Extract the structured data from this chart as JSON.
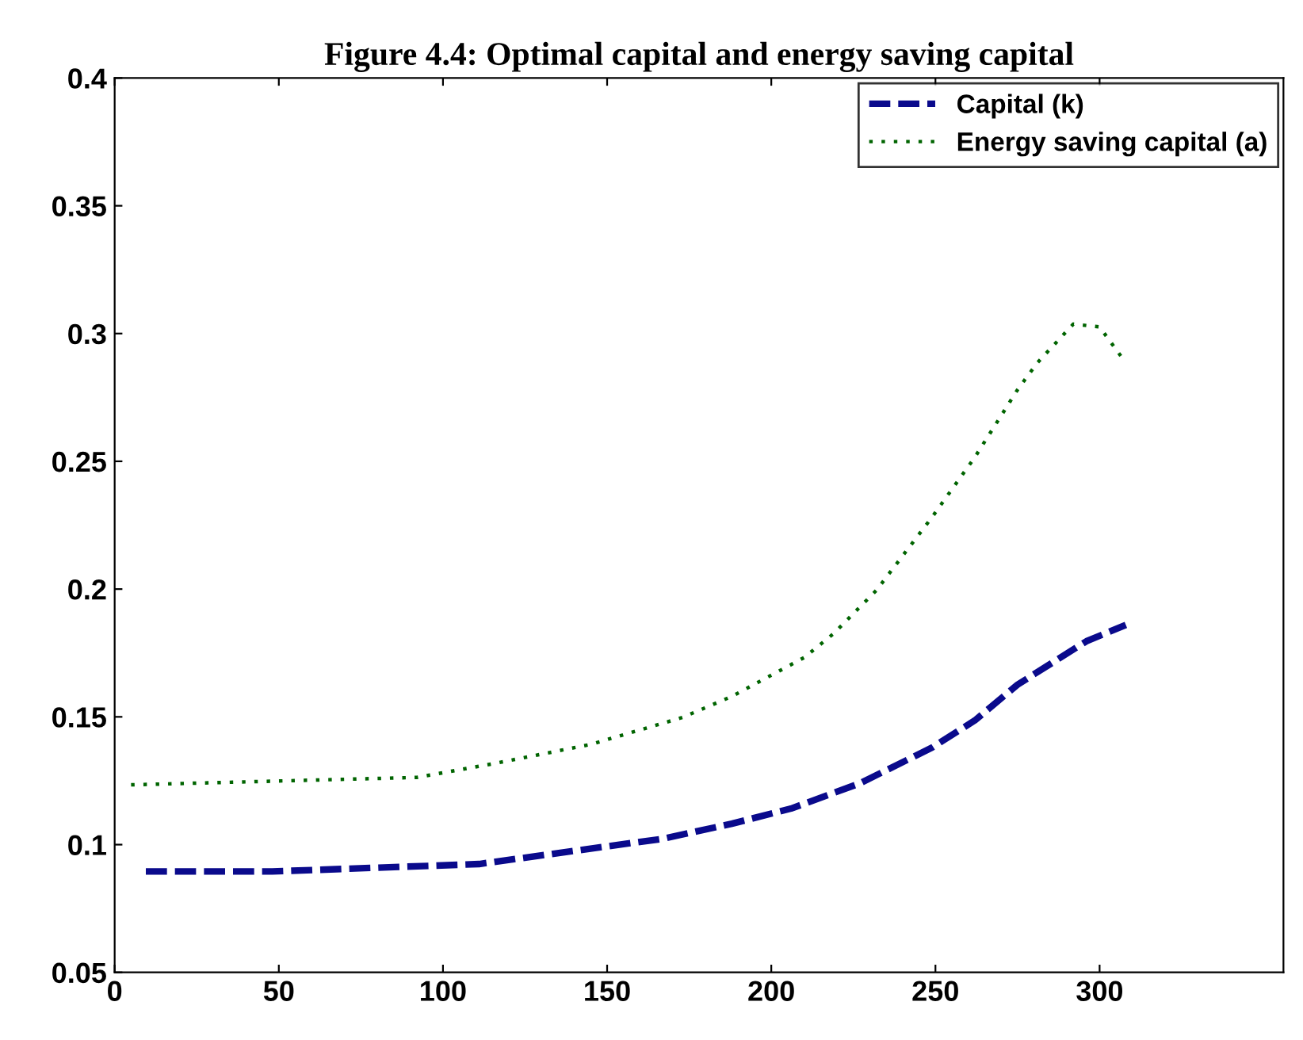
{
  "chart_data": {
    "type": "line",
    "title": "Figure 4.4: Optimal capital and energy saving capital",
    "xlim": [
      0,
      356
    ],
    "xticks": [
      0,
      50,
      100,
      150,
      200,
      250,
      300
    ],
    "ylim": [
      0.05,
      0.4
    ],
    "yticks": [
      0.05,
      0.1,
      0.15,
      0.2,
      0.25,
      0.3,
      0.35,
      0.4
    ],
    "grid": false,
    "legend": "top right",
    "marker": "none",
    "series": [
      {
        "name": "Capital (k)",
        "color": "#0a0a8c",
        "line_style": "dashed",
        "x": [
          9.5,
          48,
          111,
          134,
          167,
          188,
          206,
          227,
          249,
          262,
          275,
          296,
          308
        ],
        "values": [
          0.0895,
          0.0895,
          0.0924,
          0.0965,
          0.1023,
          0.1082,
          0.1141,
          0.124,
          0.138,
          0.1486,
          0.1626,
          0.1796,
          0.186
        ]
      },
      {
        "name": "Energy saving capital (a)",
        "color": "#006400",
        "line_style": "dotted",
        "x": [
          5,
          92,
          115,
          145,
          173,
          188,
          210,
          219,
          232,
          249,
          262,
          275,
          281,
          292,
          300,
          308
        ],
        "values": [
          0.1234,
          0.1263,
          0.1316,
          0.1392,
          0.1498,
          0.158,
          0.1732,
          0.1826,
          0.1995,
          0.2282,
          0.2516,
          0.278,
          0.2885,
          0.3037,
          0.3026,
          0.2885
        ]
      }
    ]
  }
}
